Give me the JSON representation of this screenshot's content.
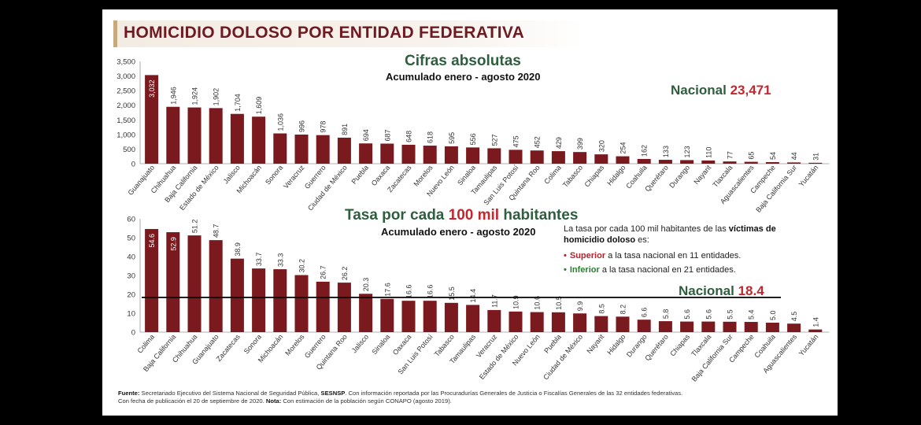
{
  "title": "HOMICIDIO DOLOSO POR ENTIDAD FEDERATIVA",
  "colors": {
    "bar": "#7a1a1f",
    "title": "#6e1a22",
    "green": "#2e5e3e",
    "red": "#c1272d"
  },
  "chart1": {
    "heading": "Cifras absolutas",
    "subheading": "Acumulado enero - agosto 2020",
    "national_label": "Nacional",
    "national_value": "23,471"
  },
  "chart2": {
    "heading_pre": "Tasa por cada",
    "heading_hl": "100 mil",
    "heading_post": "habitantes",
    "subheading": "Acumulado enero - agosto 2020",
    "national_label": "Nacional",
    "national_value": "18.4",
    "note_pre": "La tasa por cada 100 mil habitantes de las",
    "note_bold": "víctimas de homicidio doloso",
    "note_post": "es:",
    "bullet1_kw": "Superior",
    "bullet1_rest": "a la tasa nacional en 11 entidades.",
    "bullet2_kw": "Inferior",
    "bullet2_rest": "a la tasa nacional en 21 entidades."
  },
  "footer": {
    "fuente_label": "Fuente:",
    "fuente_text": "Secretariado Ejecutivo del Sistema Nacional de Seguridad Pública,",
    "sesnsp": "SESNSP",
    "fuente_text2": ". Con información reportada por las Procuradurías Generales de Justicia o Fiscalías Generales de las 32 entidades federativas.",
    "line2": "Con fecha de publicación el 20 de  septiembre de 2020.",
    "nota_label": "Nota:",
    "nota_text": "Con estimación de la población según CONAPO (agosto 2019)."
  },
  "chart_data": [
    {
      "type": "bar",
      "title": "Cifras absolutas",
      "subtitle": "Acumulado enero - agosto 2020",
      "ylim": [
        0,
        3500
      ],
      "yticks": [
        "0",
        "500",
        "1,000",
        "1,500",
        "2,000",
        "2,500",
        "3,000",
        "3,500"
      ],
      "categories": [
        "Guanajuato",
        "Chihuahua",
        "Baja California",
        "Estado de México",
        "Jalisco",
        "Michoacán",
        "Sonora",
        "Veracruz",
        "Guerrero",
        "Ciudad de México",
        "Puebla",
        "Oaxaca",
        "Zacatecas",
        "Morelos",
        "Nuevo León",
        "Sinaloa",
        "Tamaulipas",
        "San Luis Potosí",
        "Quintana Roo",
        "Colima",
        "Tabasco",
        "Chiapas",
        "Hidalgo",
        "Coahuila",
        "Querétaro",
        "Durango",
        "Nayarit",
        "Tlaxcala",
        "Aguascalientes",
        "Campeche",
        "Baja California Sur",
        "Yucatán"
      ],
      "values": [
        3032,
        1946,
        1924,
        1902,
        1704,
        1609,
        1036,
        996,
        978,
        891,
        694,
        687,
        648,
        618,
        595,
        556,
        527,
        475,
        452,
        429,
        399,
        320,
        254,
        162,
        133,
        123,
        110,
        77,
        65,
        54,
        44,
        31
      ],
      "labels": [
        "3,032",
        "1,946",
        "1,924",
        "1,902",
        "1,704",
        "1,609",
        "1,036",
        "996",
        "978",
        "891",
        "694",
        "687",
        "648",
        "618",
        "595",
        "556",
        "527",
        "475",
        "452",
        "429",
        "399",
        "320",
        "254",
        "162",
        "133",
        "123",
        "110",
        "77",
        "65",
        "54",
        "44",
        "31"
      ]
    },
    {
      "type": "bar",
      "title": "Tasa por cada 100 mil habitantes",
      "subtitle": "Acumulado enero - agosto 2020",
      "ylim": [
        0,
        60
      ],
      "yticks": [
        "0",
        "10",
        "20",
        "30",
        "40",
        "50",
        "60"
      ],
      "reference_line": 18.4,
      "categories": [
        "Colima",
        "Baja California",
        "Chihuahua",
        "Guanajuato",
        "Zacatecas",
        "Sonora",
        "Michoacán",
        "Morelos",
        "Guerrero",
        "Quintana Roo",
        "Jalisco",
        "Sinaloa",
        "Oaxaca",
        "San Luis Potosí",
        "Tabasco",
        "Tamaulipas",
        "Veracruz",
        "Estado de México",
        "Nuevo León",
        "Puebla",
        "Ciudad de México",
        "Nayarit",
        "Hidalgo",
        "Durango",
        "Querétaro",
        "Chiapas",
        "Tlaxcala",
        "Baja California Sur",
        "Campeche",
        "Coahuila",
        "Aguascalientes",
        "Yucatán"
      ],
      "values": [
        54.6,
        52.9,
        51.2,
        48.7,
        38.9,
        33.7,
        33.3,
        30.2,
        26.7,
        26.2,
        20.3,
        17.6,
        16.6,
        16.6,
        15.5,
        14.4,
        11.7,
        10.9,
        10.6,
        10.5,
        9.9,
        8.5,
        8.2,
        6.6,
        5.8,
        5.6,
        5.6,
        5.5,
        5.4,
        5.0,
        4.5,
        1.4
      ],
      "labels": [
        "54.6",
        "52.9",
        "51.2",
        "48.7",
        "38.9",
        "33.7",
        "33.3",
        "30.2",
        "26.7",
        "26.2",
        "20.3",
        "17.6",
        "16.6",
        "16.6",
        "15.5",
        "14.4",
        "11.7",
        "10.9",
        "10.6",
        "10.5",
        "9.9",
        "8.5",
        "8.2",
        "6.6",
        "5.8",
        "5.6",
        "5.6",
        "5.5",
        "5.4",
        "5.0",
        "4.5",
        "1.4"
      ]
    }
  ]
}
